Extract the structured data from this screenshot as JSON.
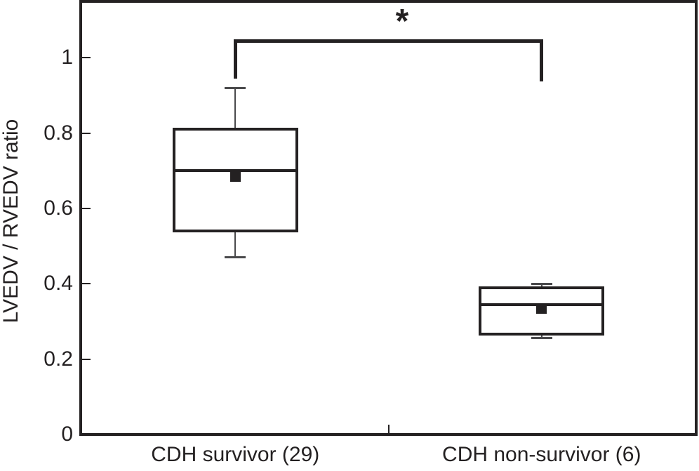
{
  "figure": {
    "kind": "box-and-whisker comparison plot",
    "background": "#ffffff",
    "ink_color": "#242122",
    "whisker_color": "#4a4a4c"
  },
  "chart_data": {
    "type": "boxplot",
    "title": "",
    "xlabel": "",
    "ylabel": "LVEDV / RVEDV ratio",
    "ylim": [
      0,
      1.15
    ],
    "yticks": [
      0,
      0.2,
      0.4,
      0.6,
      0.8,
      1
    ],
    "ytick_labels": [
      "0",
      "0.2",
      "0.4",
      "0.6",
      "0.8",
      "1"
    ],
    "grid": false,
    "legend": "none",
    "categories": [
      "CDH survivor (29)",
      "CDH non-survivor (6)"
    ],
    "series": [
      {
        "name": "CDH survivor (29)",
        "whisker_low": 0.47,
        "q1": 0.54,
        "median": 0.7,
        "mean": 0.685,
        "q3": 0.81,
        "whisker_high": 0.92
      },
      {
        "name": "CDH non-survivor (6)",
        "whisker_low": 0.256,
        "q1": 0.266,
        "median": 0.344,
        "mean": 0.335,
        "q3": 0.39,
        "whisker_high": 0.4
      }
    ],
    "annotation": {
      "type": "significance-bracket",
      "label": "*",
      "between": [
        0,
        1
      ],
      "y": 1.045,
      "tip_drop_left": 0.1,
      "tip_drop_right": 0.108
    }
  }
}
